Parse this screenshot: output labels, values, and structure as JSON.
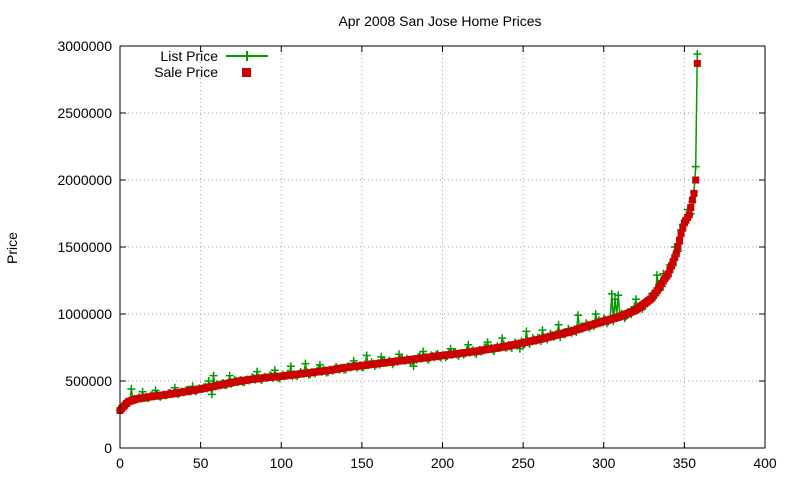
{
  "chart_data": {
    "type": "line",
    "title": "Apr 2008 San Jose Home Prices",
    "xlabel": "",
    "ylabel": "Price",
    "xlim": [
      0,
      400
    ],
    "ylim": [
      0,
      3000000
    ],
    "xticks": [
      0,
      50,
      100,
      150,
      200,
      250,
      300,
      350,
      400
    ],
    "xtick_labels": [
      "0",
      "50",
      "100",
      "150",
      "200",
      "250",
      "300",
      "350",
      "400"
    ],
    "yticks": [
      0,
      500000,
      1000000,
      1500000,
      2000000,
      2500000,
      3000000
    ],
    "ytick_labels": [
      "0",
      "500000",
      "1000000",
      "1500000",
      "2000000",
      "2500000",
      "3000000"
    ],
    "grid": true,
    "legend_position": "top-left",
    "n_points": 358,
    "sale_curve": [
      [
        0,
        280000
      ],
      [
        5,
        345000
      ],
      [
        10,
        365000
      ],
      [
        20,
        385000
      ],
      [
        30,
        400000
      ],
      [
        40,
        420000
      ],
      [
        50,
        440000
      ],
      [
        60,
        465000
      ],
      [
        70,
        490000
      ],
      [
        80,
        510000
      ],
      [
        90,
        525000
      ],
      [
        100,
        535000
      ],
      [
        110,
        550000
      ],
      [
        120,
        565000
      ],
      [
        130,
        580000
      ],
      [
        140,
        600000
      ],
      [
        150,
        615000
      ],
      [
        160,
        630000
      ],
      [
        170,
        645000
      ],
      [
        180,
        660000
      ],
      [
        190,
        675000
      ],
      [
        200,
        690000
      ],
      [
        210,
        705000
      ],
      [
        220,
        720000
      ],
      [
        230,
        740000
      ],
      [
        240,
        760000
      ],
      [
        250,
        785000
      ],
      [
        260,
        810000
      ],
      [
        270,
        840000
      ],
      [
        280,
        870000
      ],
      [
        290,
        910000
      ],
      [
        300,
        945000
      ],
      [
        310,
        980000
      ],
      [
        320,
        1030000
      ],
      [
        330,
        1120000
      ],
      [
        340,
        1300000
      ],
      [
        345,
        1450000
      ],
      [
        348,
        1600000
      ],
      [
        350,
        1680000
      ],
      [
        353,
        1740000
      ],
      [
        355,
        1850000
      ],
      [
        356,
        1900000
      ],
      [
        357,
        2000000
      ],
      [
        358,
        2870000
      ]
    ],
    "list_outliers": [
      [
        7,
        440000
      ],
      [
        14,
        420000
      ],
      [
        22,
        430000
      ],
      [
        34,
        450000
      ],
      [
        45,
        460000
      ],
      [
        55,
        500000
      ],
      [
        57,
        400000
      ],
      [
        58,
        540000
      ],
      [
        68,
        540000
      ],
      [
        85,
        570000
      ],
      [
        96,
        580000
      ],
      [
        106,
        610000
      ],
      [
        115,
        630000
      ],
      [
        124,
        620000
      ],
      [
        145,
        650000
      ],
      [
        153,
        690000
      ],
      [
        162,
        680000
      ],
      [
        173,
        700000
      ],
      [
        182,
        610000
      ],
      [
        188,
        720000
      ],
      [
        205,
        740000
      ],
      [
        216,
        770000
      ],
      [
        228,
        790000
      ],
      [
        237,
        820000
      ],
      [
        248,
        740000
      ],
      [
        252,
        870000
      ],
      [
        262,
        880000
      ],
      [
        272,
        920000
      ],
      [
        284,
        990000
      ],
      [
        295,
        1000000
      ],
      [
        305,
        1150000
      ],
      [
        307,
        1110000
      ],
      [
        309,
        1140000
      ],
      [
        320,
        1110000
      ],
      [
        333,
        1290000
      ],
      [
        337,
        1300000
      ],
      [
        344,
        1500000
      ],
      [
        352,
        1780000
      ],
      [
        357,
        2100000
      ],
      [
        358,
        2940000
      ]
    ],
    "series": [
      {
        "name": "List Price",
        "color": "#009900",
        "marker": "plus",
        "line": true
      },
      {
        "name": "Sale Price",
        "color": "#cc0000",
        "marker": "square",
        "line": false
      }
    ]
  }
}
